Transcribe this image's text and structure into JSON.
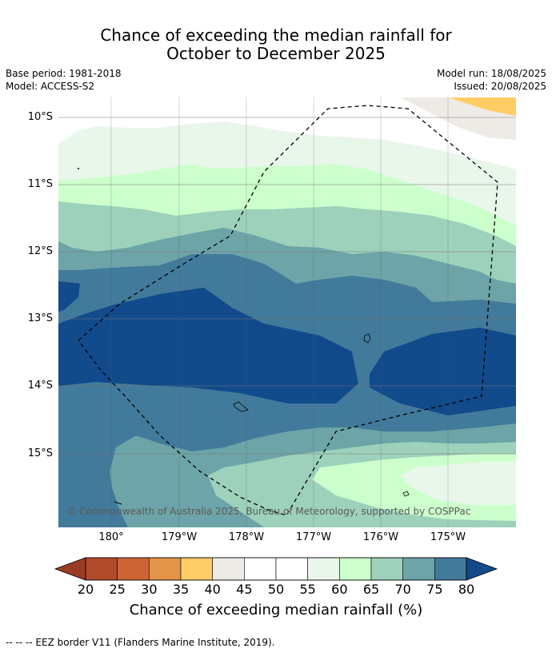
{
  "title": {
    "line1": "Chance of exceeding the median rainfall for",
    "line2": "October to December 2025"
  },
  "meta_left": {
    "base_period": "Base period: 1981-2018",
    "model": "Model: ACCESS-S2"
  },
  "meta_right": {
    "model_run": "Model run: 18/08/2025",
    "issued": "Issued: 20/08/2025"
  },
  "map": {
    "lat_labels": [
      "10°S",
      "11°S",
      "12°S",
      "13°S",
      "14°S",
      "15°S"
    ],
    "lon_labels": [
      "180°",
      "179°W",
      "178°W",
      "177°W",
      "176°W",
      "175°W"
    ],
    "copyright": "© Commonwealth of Australia 2025, Bureau of Meteorology, supported by COSPPac"
  },
  "colorbar": {
    "levels": [
      "20",
      "25",
      "30",
      "35",
      "40",
      "45",
      "50",
      "55",
      "60",
      "65",
      "70",
      "75",
      "80"
    ],
    "colors": {
      "below20": "#9a3b26",
      "20-25": "#b14a2b",
      "25-30": "#cc6436",
      "30-35": "#e39448",
      "35-40": "#ffcc66",
      "40-45": "#eeebe6",
      "45-50": "#ffffff",
      "50-55": "#ffffff",
      "55-60": "#e9f6ea",
      "60-65": "#ccffcc",
      "65-70": "#9dd1bb",
      "70-75": "#6ca4a7",
      "75-80": "#427a9b",
      "above80": "#124b8c"
    },
    "title": "Chance of exceeding median rainfall (%)"
  },
  "footer": "--  --  -- EEZ border V11 (Flanders Marine Institute, 2019)."
}
